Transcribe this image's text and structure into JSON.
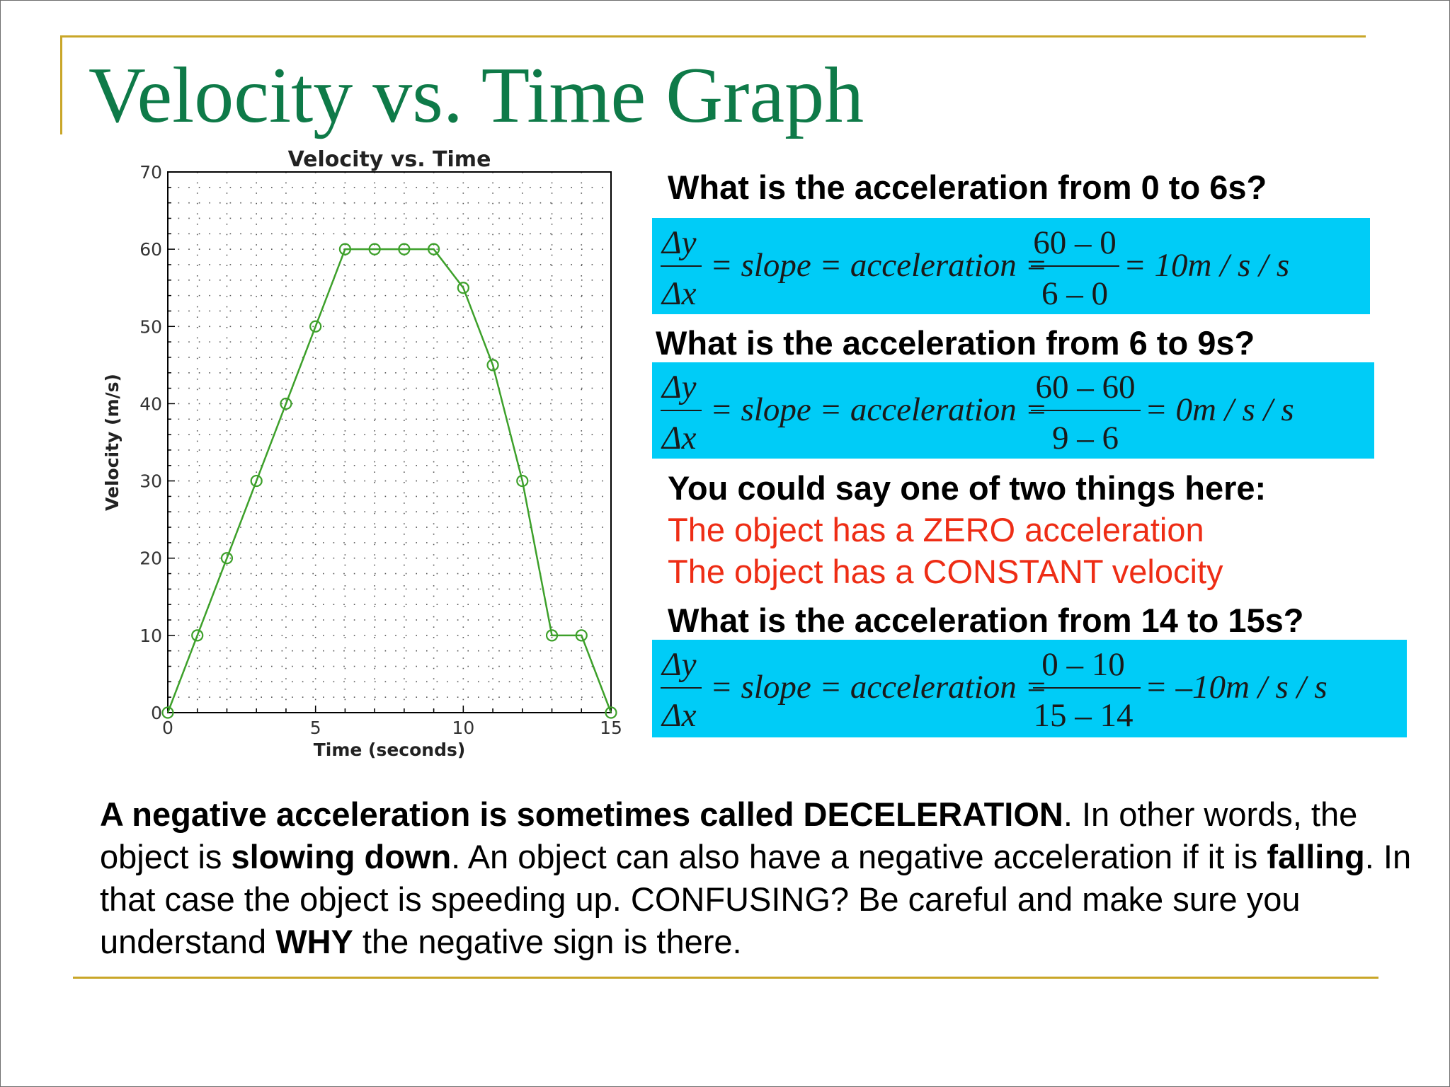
{
  "slide": {
    "title": "Velocity vs. Time Graph"
  },
  "chart_data": {
    "type": "line",
    "title": "Velocity vs. Time",
    "xlabel": "Time (seconds)",
    "ylabel": "Velocity (m/s)",
    "xlim": [
      0,
      15
    ],
    "ylim": [
      0,
      70
    ],
    "x_ticks": [
      0,
      5,
      10,
      15
    ],
    "y_ticks": [
      0,
      10,
      20,
      30,
      40,
      50,
      60,
      70
    ],
    "grid": "dotted",
    "line_color": "#3da02a",
    "marker": "open-circle",
    "x": [
      0,
      1,
      2,
      3,
      4,
      5,
      6,
      7,
      8,
      9,
      10,
      11,
      12,
      13,
      14,
      15
    ],
    "y": [
      0,
      10,
      20,
      30,
      40,
      50,
      60,
      60,
      60,
      60,
      55,
      45,
      30,
      10,
      10,
      0
    ]
  },
  "questions": {
    "q1": "What is the acceleration from 0 to 6s?",
    "q2": "What is the acceleration from 6 to 9s?",
    "q3": "What is the acceleration from 14 to 15s?"
  },
  "equations": {
    "eq1": {
      "delta_y": "Δy",
      "delta_x": "Δx",
      "middle": "= slope = acceleration =",
      "numerator": "60 – 0",
      "denominator": "6 – 0",
      "result": "= 10m / s / s"
    },
    "eq2": {
      "delta_y": "Δy",
      "delta_x": "Δx",
      "middle": "= slope = acceleration =",
      "numerator": "60 – 60",
      "denominator": "9 – 6",
      "result": "= 0m / s / s"
    },
    "eq3": {
      "delta_y": "Δy",
      "delta_x": "Δx",
      "middle": "= slope = acceleration =",
      "numerator": "0 – 10",
      "denominator": "15 – 14",
      "result": "= –10m / s / s"
    }
  },
  "note": {
    "intro": "You could say one of two things here:",
    "line1": "The object has a ZERO acceleration",
    "line2": "The object has a CONSTANT velocity"
  },
  "summary": {
    "s1": "A negative acceleration is sometimes called DECELERATION",
    "s2": ". In other words, the object is ",
    "s3": "slowing down",
    "s4": ". An object can also have a negative acceleration if it is ",
    "s5": "falling",
    "s6": ". In that case the object is speeding up. CONFUSING? Be careful and make sure you understand ",
    "s7": "WHY",
    "s8": " the negative sign is there."
  },
  "colors": {
    "title": "#0e7a48",
    "rule": "#c9a628",
    "equation_box": "#00ccf7",
    "note_text": "#ee2d15",
    "chart_line": "#3da02a"
  }
}
